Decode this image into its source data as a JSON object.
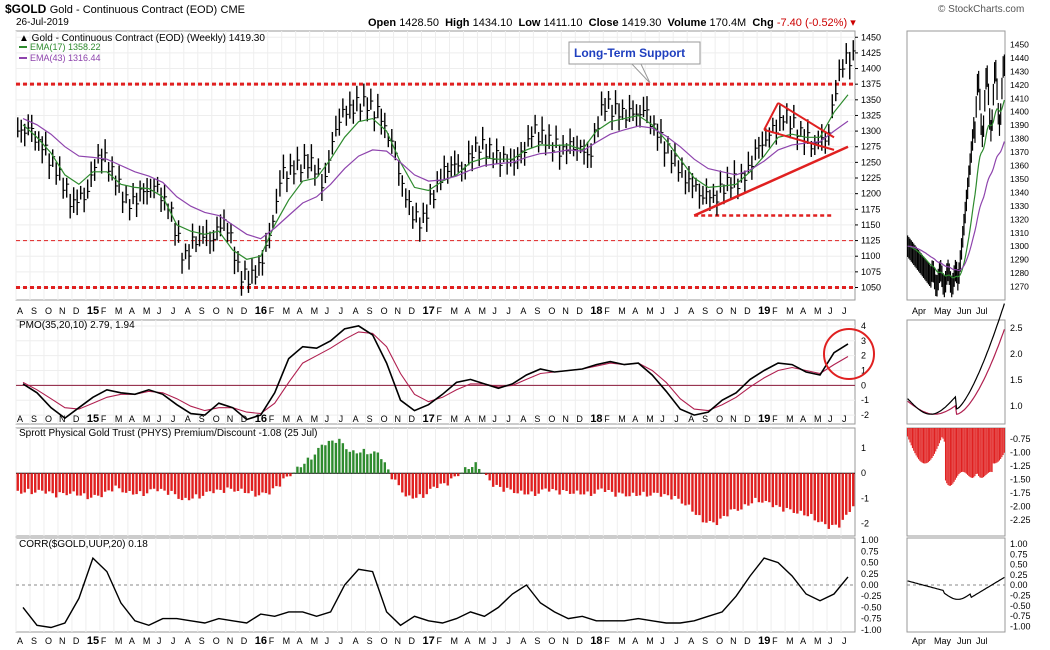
{
  "header": {
    "ticker": "$GOLD",
    "name": "Gold - Continuous Contract (EOD)",
    "exchange": "CME",
    "date": "26-Jul-2019",
    "copyright": "© StockCharts.com",
    "open_label": "Open",
    "open": "1428.50",
    "high_label": "High",
    "high": "1434.10",
    "low_label": "Low",
    "low": "1411.10",
    "close_label": "Close",
    "close": "1419.30",
    "volume_label": "Volume",
    "volume": "170.4M",
    "chg_label": "Chg",
    "chg": "-7.40 (-0.52%)"
  },
  "colors": {
    "price": "#000000",
    "ema17": "#2e8b2e",
    "ema43": "#8e44ad",
    "support": "#e02020",
    "pos_hist": "#2e8b2e",
    "neg_hist": "#e02020",
    "signal": "#b02050",
    "callout": "#1f3fbf"
  },
  "annotations": {
    "callout": "Long-Term Support"
  },
  "chart_data": [
    {
      "type": "line",
      "panel": "price-weekly",
      "legend": [
        "Gold - Continuous Contract (EOD) (Weekly) 1419.30",
        "EMA(17) 1358.22",
        "EMA(43) 1316.44"
      ],
      "x": [
        "2014-08",
        "2014-09",
        "2014-10",
        "2014-11",
        "2014-12",
        "2015-01",
        "2015-02",
        "2015-03",
        "2015-04",
        "2015-05",
        "2015-06",
        "2015-07",
        "2015-08",
        "2015-09",
        "2015-10",
        "2015-11",
        "2015-12",
        "2016-01",
        "2016-02",
        "2016-03",
        "2016-04",
        "2016-05",
        "2016-06",
        "2016-07",
        "2016-08",
        "2016-09",
        "2016-10",
        "2016-11",
        "2016-12",
        "2017-01",
        "2017-02",
        "2017-03",
        "2017-04",
        "2017-05",
        "2017-06",
        "2017-07",
        "2017-08",
        "2017-09",
        "2017-10",
        "2017-11",
        "2017-12",
        "2018-01",
        "2018-02",
        "2018-03",
        "2018-04",
        "2018-05",
        "2018-06",
        "2018-07",
        "2018-08",
        "2018-09",
        "2018-10",
        "2018-11",
        "2018-12",
        "2019-01",
        "2019-02",
        "2019-03",
        "2019-04",
        "2019-05",
        "2019-06",
        "2019-07"
      ],
      "series": [
        {
          "name": "Gold - Continuous Contract (EOD) (Weekly) 1419.30",
          "values": [
            1300,
            1270,
            1235,
            1185,
            1200,
            1270,
            1230,
            1180,
            1200,
            1210,
            1175,
            1095,
            1135,
            1130,
            1160,
            1070,
            1065,
            1115,
            1230,
            1240,
            1255,
            1215,
            1320,
            1340,
            1345,
            1325,
            1270,
            1180,
            1150,
            1210,
            1250,
            1240,
            1280,
            1265,
            1250,
            1255,
            1300,
            1285,
            1270,
            1280,
            1260,
            1345,
            1330,
            1325,
            1330,
            1290,
            1255,
            1225,
            1200,
            1195,
            1220,
            1220,
            1270,
            1295,
            1325,
            1300,
            1280,
            1290,
            1410,
            1419
          ]
        },
        {
          "name": "EMA(17) 1358.22",
          "values": [
            1310,
            1290,
            1265,
            1230,
            1215,
            1235,
            1235,
            1215,
            1210,
            1208,
            1195,
            1150,
            1140,
            1135,
            1140,
            1110,
            1095,
            1100,
            1150,
            1190,
            1220,
            1225,
            1255,
            1290,
            1315,
            1320,
            1300,
            1250,
            1210,
            1205,
            1220,
            1230,
            1250,
            1257,
            1255,
            1255,
            1270,
            1278,
            1277,
            1278,
            1270,
            1300,
            1315,
            1320,
            1325,
            1310,
            1285,
            1255,
            1225,
            1210,
            1212,
            1215,
            1235,
            1260,
            1290,
            1295,
            1290,
            1290,
            1330,
            1358
          ]
        },
        {
          "name": "EMA(43) 1316.44",
          "values": [
            1320,
            1310,
            1295,
            1275,
            1260,
            1258,
            1255,
            1245,
            1235,
            1228,
            1218,
            1195,
            1180,
            1170,
            1165,
            1150,
            1135,
            1128,
            1145,
            1165,
            1185,
            1195,
            1215,
            1240,
            1260,
            1270,
            1268,
            1250,
            1230,
            1220,
            1222,
            1228,
            1238,
            1245,
            1248,
            1250,
            1258,
            1264,
            1266,
            1270,
            1268,
            1282,
            1295,
            1302,
            1308,
            1305,
            1292,
            1275,
            1255,
            1240,
            1235,
            1230,
            1238,
            1252,
            1270,
            1278,
            1281,
            1283,
            1300,
            1316
          ]
        }
      ],
      "ylim": [
        1030,
        1460
      ],
      "yticks": [
        1050,
        1075,
        1100,
        1125,
        1150,
        1175,
        1200,
        1225,
        1250,
        1275,
        1300,
        1325,
        1350,
        1375,
        1400,
        1425,
        1450
      ],
      "support_lines": [
        1050,
        1125,
        1375
      ],
      "support_line_short": 1165,
      "trendline": [
        [
          "2018-08",
          1165
        ],
        [
          "2019-07",
          1275
        ]
      ],
      "triangle_upper": [
        [
          "2019-02",
          1345
        ],
        [
          "2019-06",
          1290
        ]
      ],
      "triangle_lower": [
        [
          "2019-01",
          1302
        ],
        [
          "2019-06",
          1270
        ]
      ]
    },
    {
      "type": "line",
      "panel": "price-daily",
      "x": [
        "Apr",
        "May",
        "Jun",
        "Jul"
      ],
      "ylim": [
        1260,
        1460
      ],
      "yticks": [
        1270,
        1280,
        1290,
        1300,
        1310,
        1320,
        1330,
        1340,
        1350,
        1360,
        1370,
        1380,
        1390,
        1400,
        1410,
        1420,
        1430,
        1440,
        1450
      ]
    },
    {
      "type": "line",
      "panel": "pmo-weekly",
      "legend": [
        "PMO(35,20,10) 2.79, 1.94"
      ],
      "series": [
        {
          "name": "PMO(35,20,10)",
          "values": [
            0.1,
            -0.5,
            -1.5,
            -2.2,
            -1.5,
            -0.8,
            -0.3,
            -0.5,
            -0.6,
            -0.3,
            -0.6,
            -1.3,
            -1.9,
            -2.0,
            -1.2,
            -1.5,
            -2.3,
            -2.0,
            -0.5,
            1.8,
            2.6,
            2.5,
            3.0,
            3.8,
            4.0,
            3.4,
            1.5,
            -1.0,
            -1.7,
            -1.3,
            -0.6,
            0.2,
            0.4,
            0.1,
            -0.2,
            0.1,
            0.7,
            1.1,
            0.9,
            1.0,
            1.1,
            1.4,
            1.6,
            1.4,
            1.5,
            0.7,
            -0.4,
            -1.6,
            -2.0,
            -1.8,
            -1.0,
            -0.5,
            0.4,
            1.0,
            1.5,
            1.4,
            0.9,
            0.7,
            2.2,
            2.79
          ]
        },
        {
          "name": "Signal",
          "values": [
            0.2,
            -0.3,
            -0.9,
            -1.5,
            -1.6,
            -1.2,
            -0.8,
            -0.6,
            -0.6,
            -0.4,
            -0.5,
            -0.9,
            -1.4,
            -1.7,
            -1.5,
            -1.5,
            -1.8,
            -1.9,
            -1.2,
            0.2,
            1.5,
            2.0,
            2.5,
            3.1,
            3.6,
            3.5,
            2.6,
            0.8,
            -0.6,
            -1.1,
            -0.8,
            -0.3,
            0.1,
            0.1,
            -0.1,
            0.0,
            0.4,
            0.8,
            0.9,
            1.0,
            1.1,
            1.3,
            1.5,
            1.4,
            1.5,
            1.0,
            0.2,
            -0.9,
            -1.6,
            -1.7,
            -1.3,
            -0.8,
            -0.1,
            0.5,
            1.0,
            1.2,
            1.0,
            0.8,
            1.4,
            1.94
          ]
        }
      ],
      "ylim": [
        -2.6,
        4.4
      ],
      "yticks": [
        -2,
        -1,
        0,
        1,
        2,
        3,
        4
      ]
    },
    {
      "type": "bar",
      "panel": "phys-premium",
      "legend": [
        "Sprott Physical Gold Trust (PHYS) Premium/Discount -1.08 (25 Jul)"
      ],
      "values": [
        -0.7,
        -0.8,
        -0.9,
        -0.7,
        -0.9,
        -1.0,
        -0.6,
        -0.7,
        -0.8,
        -0.7,
        -0.8,
        -1.0,
        -0.9,
        -0.8,
        -0.7,
        -0.6,
        -0.8,
        -0.9,
        -0.4,
        0.2,
        0.6,
        1.1,
        1.3,
        0.9,
        0.9,
        0.7,
        -0.3,
        -0.9,
        -0.9,
        -0.6,
        -0.4,
        0.2,
        0.4,
        -0.5,
        -0.7,
        -0.7,
        -0.8,
        -0.7,
        -0.8,
        -0.7,
        -0.8,
        -0.7,
        -0.9,
        -0.8,
        -0.8,
        -0.9,
        -1.0,
        -1.2,
        -1.8,
        -2.1,
        -1.6,
        -1.3,
        -1.0,
        -1.3,
        -1.5,
        -1.5,
        -1.7,
        -2.2,
        -2.1,
        -1.08
      ],
      "ylim": [
        -2.5,
        1.8
      ],
      "yticks": [
        -2,
        -1,
        0,
        1
      ]
    },
    {
      "type": "line",
      "panel": "corr",
      "legend": [
        "CORR($GOLD,UUP,20) 0.18"
      ],
      "values": [
        -0.5,
        -0.9,
        -0.95,
        -0.85,
        -0.3,
        0.6,
        0.3,
        -0.4,
        -0.8,
        -0.9,
        -0.75,
        -0.75,
        -0.8,
        -0.85,
        -0.75,
        -0.8,
        -0.85,
        -0.65,
        -0.7,
        -0.6,
        -0.6,
        -0.7,
        -0.6,
        0.0,
        0.35,
        0.3,
        -0.6,
        -0.9,
        -0.7,
        -0.8,
        -0.85,
        -0.75,
        -0.6,
        -0.7,
        -0.5,
        -0.2,
        0.0,
        -0.4,
        -0.6,
        -0.75,
        -0.7,
        -0.8,
        -0.8,
        -0.8,
        -0.75,
        -0.8,
        -0.85,
        -0.85,
        -0.8,
        -0.7,
        -0.6,
        -0.25,
        0.2,
        0.6,
        0.5,
        0.2,
        -0.2,
        -0.35,
        -0.2,
        0.18
      ],
      "ylim": [
        -1.05,
        1.05
      ],
      "yticks": [
        -1.0,
        -0.75,
        -0.5,
        -0.25,
        0.0,
        0.25,
        0.5,
        0.75,
        1.0
      ]
    }
  ],
  "x_axis_labels": [
    "A",
    "S",
    "O",
    "N",
    "D",
    "15",
    "F",
    "M",
    "A",
    "M",
    "J",
    "J",
    "A",
    "S",
    "O",
    "N",
    "D",
    "16",
    "F",
    "M",
    "A",
    "M",
    "J",
    "J",
    "A",
    "S",
    "O",
    "N",
    "D",
    "17",
    "F",
    "M",
    "A",
    "M",
    "J",
    "J",
    "A",
    "S",
    "O",
    "N",
    "D",
    "18",
    "F",
    "M",
    "A",
    "M",
    "J",
    "J",
    "A",
    "S",
    "O",
    "N",
    "D",
    "19",
    "F",
    "M",
    "A",
    "M",
    "J",
    "J"
  ],
  "daily_labels": [
    "Apr",
    "May",
    "Jun",
    "Jul"
  ],
  "daily_pmo_ticks": [
    "1.0",
    "1.5",
    "2.0",
    "2.5"
  ],
  "daily_phys_ticks": [
    "-0.75",
    "-1.00",
    "-1.25",
    "-1.50",
    "-1.75",
    "-2.00",
    "-2.25"
  ],
  "daily_corr_ticks": [
    "1.00",
    "0.75",
    "0.50",
    "0.25",
    "0.00",
    "-0.25",
    "-0.50",
    "-0.75",
    "-1.00"
  ]
}
